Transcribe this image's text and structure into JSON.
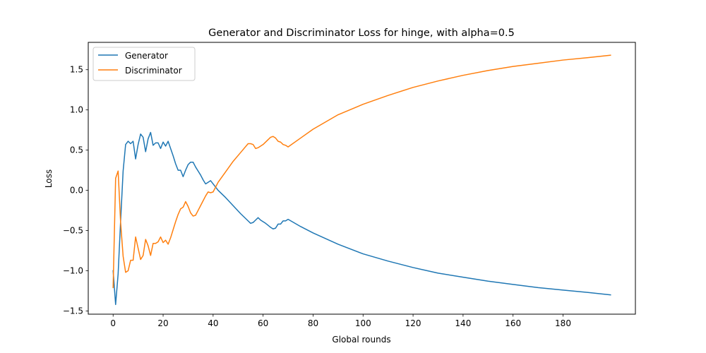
{
  "chart_data": {
    "type": "line",
    "title": "Generator and Discriminator Loss for hinge, with alpha=0.5",
    "xlabel": "Global rounds",
    "ylabel": "Loss",
    "xlim": [
      -9.95,
      208.95
    ],
    "ylim": [
      -1.54,
      1.84
    ],
    "xticks": [
      0,
      20,
      40,
      60,
      80,
      100,
      120,
      140,
      160,
      180
    ],
    "yticks": [
      -1.5,
      -1.0,
      -0.5,
      0.0,
      0.5,
      1.0,
      1.5
    ],
    "ytick_labels": [
      "−1.5",
      "−1.0",
      "−0.5",
      "0.0",
      "0.5",
      "1.0",
      "1.5"
    ],
    "legend": {
      "location": "upper left",
      "entries": [
        "Generator",
        "Discriminator"
      ]
    },
    "grid": false,
    "series": [
      {
        "name": "Generator",
        "color": "#1f77b4",
        "points": [
          [
            0,
            -1.0
          ],
          [
            1,
            -1.42
          ],
          [
            2,
            -1.04
          ],
          [
            3,
            -0.38
          ],
          [
            4,
            0.24
          ],
          [
            5,
            0.57
          ],
          [
            6,
            0.61
          ],
          [
            7,
            0.58
          ],
          [
            8,
            0.61
          ],
          [
            9,
            0.39
          ],
          [
            10,
            0.57
          ],
          [
            11,
            0.7
          ],
          [
            12,
            0.66
          ],
          [
            13,
            0.48
          ],
          [
            14,
            0.64
          ],
          [
            15,
            0.72
          ],
          [
            16,
            0.56
          ],
          [
            17,
            0.59
          ],
          [
            18,
            0.59
          ],
          [
            19,
            0.52
          ],
          [
            20,
            0.6
          ],
          [
            21,
            0.55
          ],
          [
            22,
            0.61
          ],
          [
            23,
            0.52
          ],
          [
            24,
            0.43
          ],
          [
            25,
            0.33
          ],
          [
            26,
            0.25
          ],
          [
            27,
            0.25
          ],
          [
            28,
            0.17
          ],
          [
            29,
            0.25
          ],
          [
            30,
            0.32
          ],
          [
            31,
            0.35
          ],
          [
            32,
            0.35
          ],
          [
            33,
            0.29
          ],
          [
            34,
            0.24
          ],
          [
            35,
            0.19
          ],
          [
            36,
            0.13
          ],
          [
            37,
            0.08
          ],
          [
            38,
            0.1
          ],
          [
            39,
            0.12
          ],
          [
            40,
            0.08
          ],
          [
            42,
            0.0
          ],
          [
            45,
            -0.09
          ],
          [
            48,
            -0.19
          ],
          [
            51,
            -0.29
          ],
          [
            54,
            -0.38
          ],
          [
            55,
            -0.41
          ],
          [
            56,
            -0.4
          ],
          [
            57,
            -0.37
          ],
          [
            58,
            -0.34
          ],
          [
            59,
            -0.37
          ],
          [
            61,
            -0.41
          ],
          [
            63,
            -0.46
          ],
          [
            64,
            -0.48
          ],
          [
            65,
            -0.47
          ],
          [
            66,
            -0.42
          ],
          [
            67,
            -0.42
          ],
          [
            68,
            -0.38
          ],
          [
            69,
            -0.38
          ],
          [
            70,
            -0.36
          ],
          [
            75,
            -0.45
          ],
          [
            80,
            -0.53
          ],
          [
            90,
            -0.67
          ],
          [
            100,
            -0.79
          ],
          [
            110,
            -0.88
          ],
          [
            120,
            -0.96
          ],
          [
            130,
            -1.03
          ],
          [
            140,
            -1.08
          ],
          [
            150,
            -1.13
          ],
          [
            160,
            -1.17
          ],
          [
            170,
            -1.21
          ],
          [
            180,
            -1.24
          ],
          [
            190,
            -1.27
          ],
          [
            199,
            -1.3
          ]
        ]
      },
      {
        "name": "Discriminator",
        "color": "#ff7f0e",
        "points": [
          [
            0,
            -1.21
          ],
          [
            1,
            0.15
          ],
          [
            2,
            0.24
          ],
          [
            3,
            -0.4
          ],
          [
            4,
            -0.82
          ],
          [
            5,
            -1.02
          ],
          [
            6,
            -1.0
          ],
          [
            7,
            -0.87
          ],
          [
            8,
            -0.87
          ],
          [
            9,
            -0.58
          ],
          [
            10,
            -0.72
          ],
          [
            11,
            -0.86
          ],
          [
            12,
            -0.81
          ],
          [
            13,
            -0.61
          ],
          [
            14,
            -0.69
          ],
          [
            15,
            -0.81
          ],
          [
            16,
            -0.66
          ],
          [
            17,
            -0.66
          ],
          [
            18,
            -0.64
          ],
          [
            19,
            -0.58
          ],
          [
            20,
            -0.65
          ],
          [
            21,
            -0.62
          ],
          [
            22,
            -0.67
          ],
          [
            23,
            -0.59
          ],
          [
            24,
            -0.49
          ],
          [
            25,
            -0.39
          ],
          [
            26,
            -0.3
          ],
          [
            27,
            -0.23
          ],
          [
            28,
            -0.21
          ],
          [
            29,
            -0.14
          ],
          [
            30,
            -0.2
          ],
          [
            31,
            -0.28
          ],
          [
            32,
            -0.32
          ],
          [
            33,
            -0.31
          ],
          [
            34,
            -0.25
          ],
          [
            35,
            -0.19
          ],
          [
            36,
            -0.13
          ],
          [
            37,
            -0.07
          ],
          [
            38,
            -0.02
          ],
          [
            39,
            -0.03
          ],
          [
            40,
            -0.02
          ],
          [
            42,
            0.1
          ],
          [
            45,
            0.23
          ],
          [
            48,
            0.36
          ],
          [
            51,
            0.47
          ],
          [
            54,
            0.58
          ],
          [
            55,
            0.58
          ],
          [
            56,
            0.57
          ],
          [
            57,
            0.52
          ],
          [
            58,
            0.53
          ],
          [
            60,
            0.57
          ],
          [
            62,
            0.63
          ],
          [
            63,
            0.66
          ],
          [
            64,
            0.67
          ],
          [
            65,
            0.65
          ],
          [
            66,
            0.61
          ],
          [
            67,
            0.6
          ],
          [
            68,
            0.57
          ],
          [
            69,
            0.56
          ],
          [
            70,
            0.54
          ],
          [
            75,
            0.65
          ],
          [
            80,
            0.76
          ],
          [
            90,
            0.94
          ],
          [
            100,
            1.07
          ],
          [
            110,
            1.18
          ],
          [
            120,
            1.28
          ],
          [
            130,
            1.36
          ],
          [
            140,
            1.43
          ],
          [
            150,
            1.49
          ],
          [
            160,
            1.54
          ],
          [
            170,
            1.58
          ],
          [
            180,
            1.62
          ],
          [
            190,
            1.65
          ],
          [
            199,
            1.68
          ]
        ]
      }
    ]
  }
}
